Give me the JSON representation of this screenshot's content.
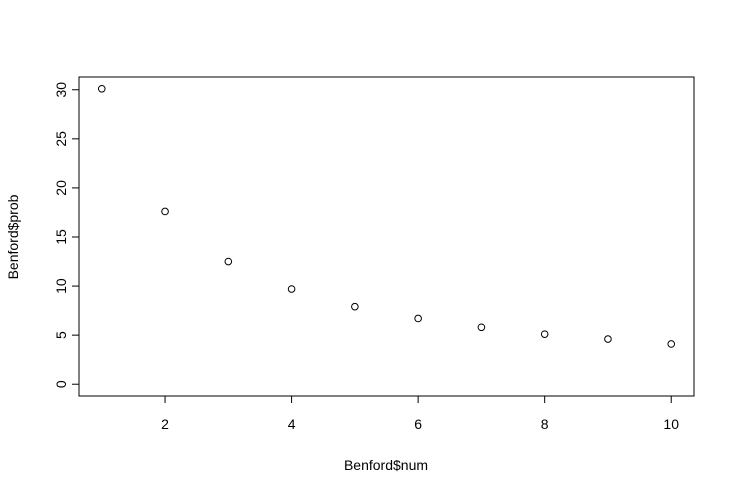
{
  "chart_data": {
    "type": "scatter",
    "title": "",
    "xlabel": "Benford$num",
    "ylabel": "Benford$prob",
    "xlim": [
      0.64,
      10.36
    ],
    "ylim": [
      -1.2,
      31.3
    ],
    "grid": false,
    "legend": "none",
    "x_ticks": [
      2,
      4,
      6,
      8,
      10
    ],
    "y_ticks": [
      0,
      5,
      10,
      15,
      20,
      25,
      30
    ],
    "x": [
      1,
      2,
      3,
      4,
      5,
      6,
      7,
      8,
      9,
      10
    ],
    "y": [
      30.1,
      17.6,
      12.5,
      9.7,
      7.9,
      6.7,
      5.8,
      5.1,
      4.6,
      4.1
    ],
    "marker": "open-circle",
    "marker_color": "#000000"
  }
}
